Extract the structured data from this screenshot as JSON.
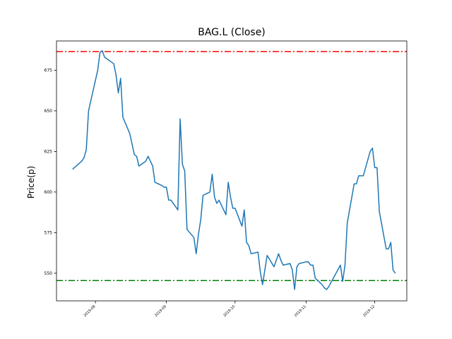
{
  "chart_data": {
    "type": "line",
    "title": "BAG.L (Close)",
    "xlabel": "",
    "ylabel": "Price(p)",
    "ylim": [
      533,
      693
    ],
    "xlim": [
      "2019-07-15",
      "2019-12-15"
    ],
    "y_ticks": [
      550,
      575,
      600,
      625,
      650,
      675
    ],
    "x_ticks": [
      "2019-08",
      "2019-09",
      "2019-10",
      "2019-11",
      "2019-12"
    ],
    "grid": false,
    "line_color": "#1f77b4",
    "reference_lines": [
      {
        "y": 686.5,
        "color": "#ff0000",
        "style": "dashdot"
      },
      {
        "y": 545.5,
        "color": "#008000",
        "style": "dashdot"
      }
    ],
    "series": [
      {
        "name": "",
        "points": [
          [
            "2019-07-22",
            614
          ],
          [
            "2019-07-26",
            619
          ],
          [
            "2019-07-27",
            621
          ],
          [
            "2019-07-28",
            626
          ],
          [
            "2019-07-29",
            650
          ],
          [
            "2019-08-02",
            675
          ],
          [
            "2019-08-03",
            686
          ],
          [
            "2019-08-04",
            687
          ],
          [
            "2019-08-05",
            683
          ],
          [
            "2019-08-09",
            679
          ],
          [
            "2019-08-10",
            672
          ],
          [
            "2019-08-11",
            661
          ],
          [
            "2019-08-12",
            670
          ],
          [
            "2019-08-13",
            646
          ],
          [
            "2019-08-16",
            636
          ],
          [
            "2019-08-18",
            623
          ],
          [
            "2019-08-19",
            622
          ],
          [
            "2019-08-20",
            616
          ],
          [
            "2019-08-22",
            618
          ],
          [
            "2019-08-23",
            619
          ],
          [
            "2019-08-24",
            622
          ],
          [
            "2019-08-26",
            616
          ],
          [
            "2019-08-27",
            606
          ],
          [
            "2019-08-30",
            604
          ],
          [
            "2019-08-31",
            603
          ],
          [
            "2019-09-01",
            603
          ],
          [
            "2019-09-02",
            595
          ],
          [
            "2019-09-03",
            595
          ],
          [
            "2019-09-05",
            591
          ],
          [
            "2019-09-06",
            589
          ],
          [
            "2019-09-07",
            645
          ],
          [
            "2019-09-08",
            617
          ],
          [
            "2019-09-09",
            613
          ],
          [
            "2019-09-10",
            577
          ],
          [
            "2019-09-13",
            572
          ],
          [
            "2019-09-14",
            562
          ],
          [
            "2019-09-15",
            574
          ],
          [
            "2019-09-16",
            583
          ],
          [
            "2019-09-17",
            598
          ],
          [
            "2019-09-20",
            600
          ],
          [
            "2019-09-21",
            611
          ],
          [
            "2019-09-22",
            597
          ],
          [
            "2019-09-23",
            593
          ],
          [
            "2019-09-24",
            595
          ],
          [
            "2019-09-27",
            586
          ],
          [
            "2019-09-28",
            606
          ],
          [
            "2019-09-29",
            597
          ],
          [
            "2019-09-30",
            590
          ],
          [
            "2019-10-01",
            590
          ],
          [
            "2019-10-04",
            579
          ],
          [
            "2019-10-05",
            589
          ],
          [
            "2019-10-06",
            569
          ],
          [
            "2019-10-07",
            567
          ],
          [
            "2019-10-08",
            562
          ],
          [
            "2019-10-11",
            563
          ],
          [
            "2019-10-12",
            551
          ],
          [
            "2019-10-13",
            543
          ],
          [
            "2019-10-14",
            552
          ],
          [
            "2019-10-15",
            561
          ],
          [
            "2019-10-18",
            554
          ],
          [
            "2019-10-19",
            558
          ],
          [
            "2019-10-20",
            562
          ],
          [
            "2019-10-21",
            558
          ],
          [
            "2019-10-22",
            555
          ],
          [
            "2019-10-25",
            556
          ],
          [
            "2019-10-26",
            552
          ],
          [
            "2019-10-27",
            540
          ],
          [
            "2019-10-28",
            554
          ],
          [
            "2019-10-29",
            556
          ],
          [
            "2019-11-01",
            557
          ],
          [
            "2019-11-02",
            557
          ],
          [
            "2019-11-03",
            555
          ],
          [
            "2019-11-04",
            555
          ],
          [
            "2019-11-05",
            547
          ],
          [
            "2019-11-08",
            543
          ],
          [
            "2019-11-09",
            541
          ],
          [
            "2019-11-10",
            540
          ],
          [
            "2019-11-11",
            542
          ],
          [
            "2019-11-16",
            555
          ],
          [
            "2019-11-17",
            545
          ],
          [
            "2019-11-18",
            555
          ],
          [
            "2019-11-19",
            581
          ],
          [
            "2019-11-22",
            605
          ],
          [
            "2019-11-23",
            605
          ],
          [
            "2019-11-24",
            610
          ],
          [
            "2019-11-26",
            610
          ],
          [
            "2019-11-29",
            625
          ],
          [
            "2019-11-30",
            627
          ],
          [
            "2019-12-01",
            615
          ],
          [
            "2019-12-02",
            615
          ],
          [
            "2019-12-03",
            588
          ],
          [
            "2019-12-06",
            565
          ],
          [
            "2019-12-07",
            565
          ],
          [
            "2019-12-08",
            569
          ],
          [
            "2019-12-09",
            552
          ],
          [
            "2019-12-10",
            550
          ]
        ]
      }
    ]
  }
}
